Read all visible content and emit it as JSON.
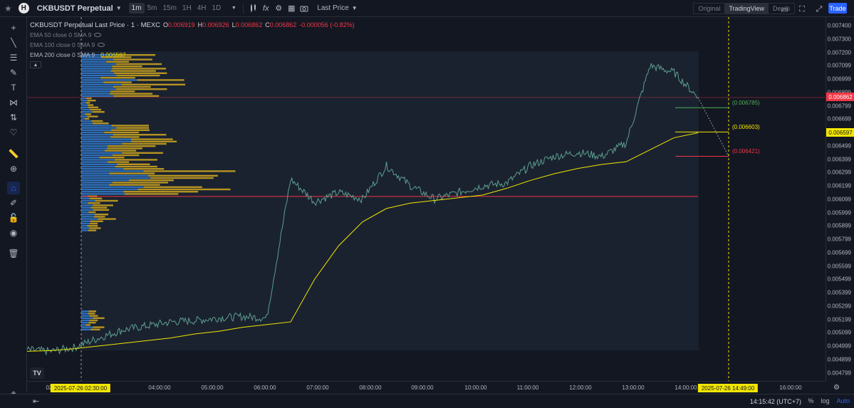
{
  "topbar": {
    "symbol": "CKBUSDT Perpetual",
    "logo_letter": "H",
    "timeframes": [
      "1m",
      "5m",
      "15m",
      "1H",
      "4H",
      "1D"
    ],
    "active_timeframe": "1m",
    "price_source": "Last Price",
    "views": [
      "Original",
      "TradingView",
      "Depth"
    ],
    "active_view": "TradingView",
    "trade_label": "Trade"
  },
  "legend": {
    "title": "CKBUSDT Perpetual Last Price · 1 · MEXC",
    "ohlc": [
      {
        "label": "O",
        "value": "0.006919"
      },
      {
        "label": "H",
        "value": "0.006926"
      },
      {
        "label": "L",
        "value": "0.006862"
      },
      {
        "label": "C",
        "value": "0.006862"
      }
    ],
    "change": "-0.000056 (-0.82%)",
    "ema_50": "EMA 50 close 0 SMA 9",
    "ema_100": "EMA 100 close 0 SMA 9",
    "ema_200": "EMA 200 close 0 SMA 9",
    "ema_200_value": "0.006597"
  },
  "price_axis": {
    "ticks": [
      "0.007400",
      "0.007300",
      "0.007200",
      "0.007099",
      "0.006999",
      "0.006899",
      "0.006799",
      "0.006699",
      "0.006599",
      "0.006499",
      "0.006399",
      "0.006299",
      "0.006199",
      "0.006099",
      "0.005999",
      "0.005899",
      "0.005799",
      "0.005699",
      "0.005599",
      "0.005499",
      "0.005399",
      "0.005299",
      "0.005199",
      "0.005099",
      "0.004999",
      "0.004899",
      "0.004799"
    ],
    "last_price_tag": "0.006862",
    "ema_tag": "0.006597",
    "last_price_color": "#f23645",
    "ema_color": "#f2e600"
  },
  "levels": {
    "upper": "(0.006785)",
    "middle": "(0.006603)",
    "lower": "(0.006421)"
  },
  "time_axis": {
    "ticks": [
      "02:",
      "03:00",
      "04:00:00",
      "05:00:00",
      "06:00:00",
      "07:00:00",
      "08:00:00",
      "09:00:00",
      "10:00:00",
      "11:00:00",
      "12:00:00",
      "13:00:00",
      "14:00:00",
      "16:00:00"
    ],
    "left_cursor": "2025-07-26    02:30:00",
    "right_cursor": "2025-07-26    14:49:00"
  },
  "bottombar": {
    "clock": "14:15:42 (UTC+7)",
    "percent": "%",
    "log": "log",
    "auto": "Auto"
  },
  "tv_mark": "TV",
  "chart_data": {
    "type": "line",
    "title": "CKBUSDT Perpetual Last Price · 1 · MEXC",
    "x": [
      "02:00",
      "02:30",
      "03:00",
      "03:30",
      "04:00",
      "04:30",
      "05:00",
      "05:30",
      "06:00",
      "06:30",
      "07:00",
      "07:05",
      "07:30",
      "08:00",
      "08:30",
      "09:00",
      "09:30",
      "10:00",
      "10:30",
      "11:00",
      "11:30",
      "12:00",
      "12:30",
      "13:00",
      "13:30",
      "13:45",
      "14:00",
      "14:10",
      "14:15"
    ],
    "series": [
      {
        "name": "",
        "values": [
          0.00497,
          0.00496,
          0.00499,
          0.00506,
          0.00512,
          0.00515,
          0.00518,
          0.00519,
          0.00521,
          0.00522,
          0.00521,
          0.00625,
          0.00608,
          0.00615,
          0.0061,
          0.00635,
          0.0062,
          0.0061,
          0.00615,
          0.0062,
          0.00622,
          0.00635,
          0.00642,
          0.00645,
          0.00642,
          0.00652,
          0.0071,
          0.00705,
          0.006862
        ]
      },
      {
        "name": "EMA 200",
        "values": [
          0.00496,
          0.004965,
          0.00498,
          0.005,
          0.00502,
          0.00504,
          0.00506,
          0.00509,
          0.00511,
          0.00514,
          0.00516,
          0.00518,
          0.0055,
          0.00575,
          0.00593,
          0.00603,
          0.00607,
          0.00609,
          0.00611,
          0.00613,
          0.00618,
          0.00624,
          0.00629,
          0.00633,
          0.00636,
          0.00638,
          0.00647,
          0.00656,
          0.006597
        ]
      }
    ],
    "ylim": [
      0.00475,
      0.00745
    ],
    "price_levels": [
      0.006785,
      0.006603,
      0.006421
    ],
    "volume_profile_poc": 0.00612
  }
}
